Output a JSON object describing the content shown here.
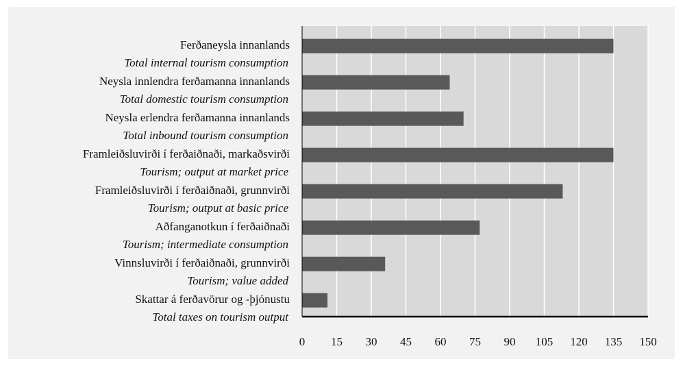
{
  "chart_data": {
    "type": "barh",
    "categories": [
      "Ferðaneysla innanlands",
      "Neysla innlendra ferðamanna innanlands",
      "Neysla erlendra ferðamanna innanlands",
      "Framleiðsluvirði í ferðaiðnaði, markaðsvirði",
      "Framleiðsluvirði í ferðaiðnaði, grunnvirði",
      "Aðfanganotkun í ferðaiðnaði",
      "Vinnsluvirði í ferðaiðnaði, grunnvirði",
      "Skattar á ferðavörur og -þjónustu"
    ],
    "categories_en": [
      "Total internal tourism consumption",
      "Total domestic tourism consumption",
      "Total inbound tourism consumption",
      "Tourism; output at market price",
      "Tourism; output at basic price",
      "Tourism; intermediate consumption",
      "Tourism; value added",
      "Total taxes on tourism output"
    ],
    "values": [
      135,
      64,
      70,
      135,
      113,
      77,
      36,
      11
    ],
    "color": "#595959",
    "xlim": [
      0,
      150
    ],
    "xticks": [
      0,
      15,
      30,
      45,
      60,
      75,
      90,
      105,
      120,
      135,
      150
    ],
    "grid": true
  }
}
